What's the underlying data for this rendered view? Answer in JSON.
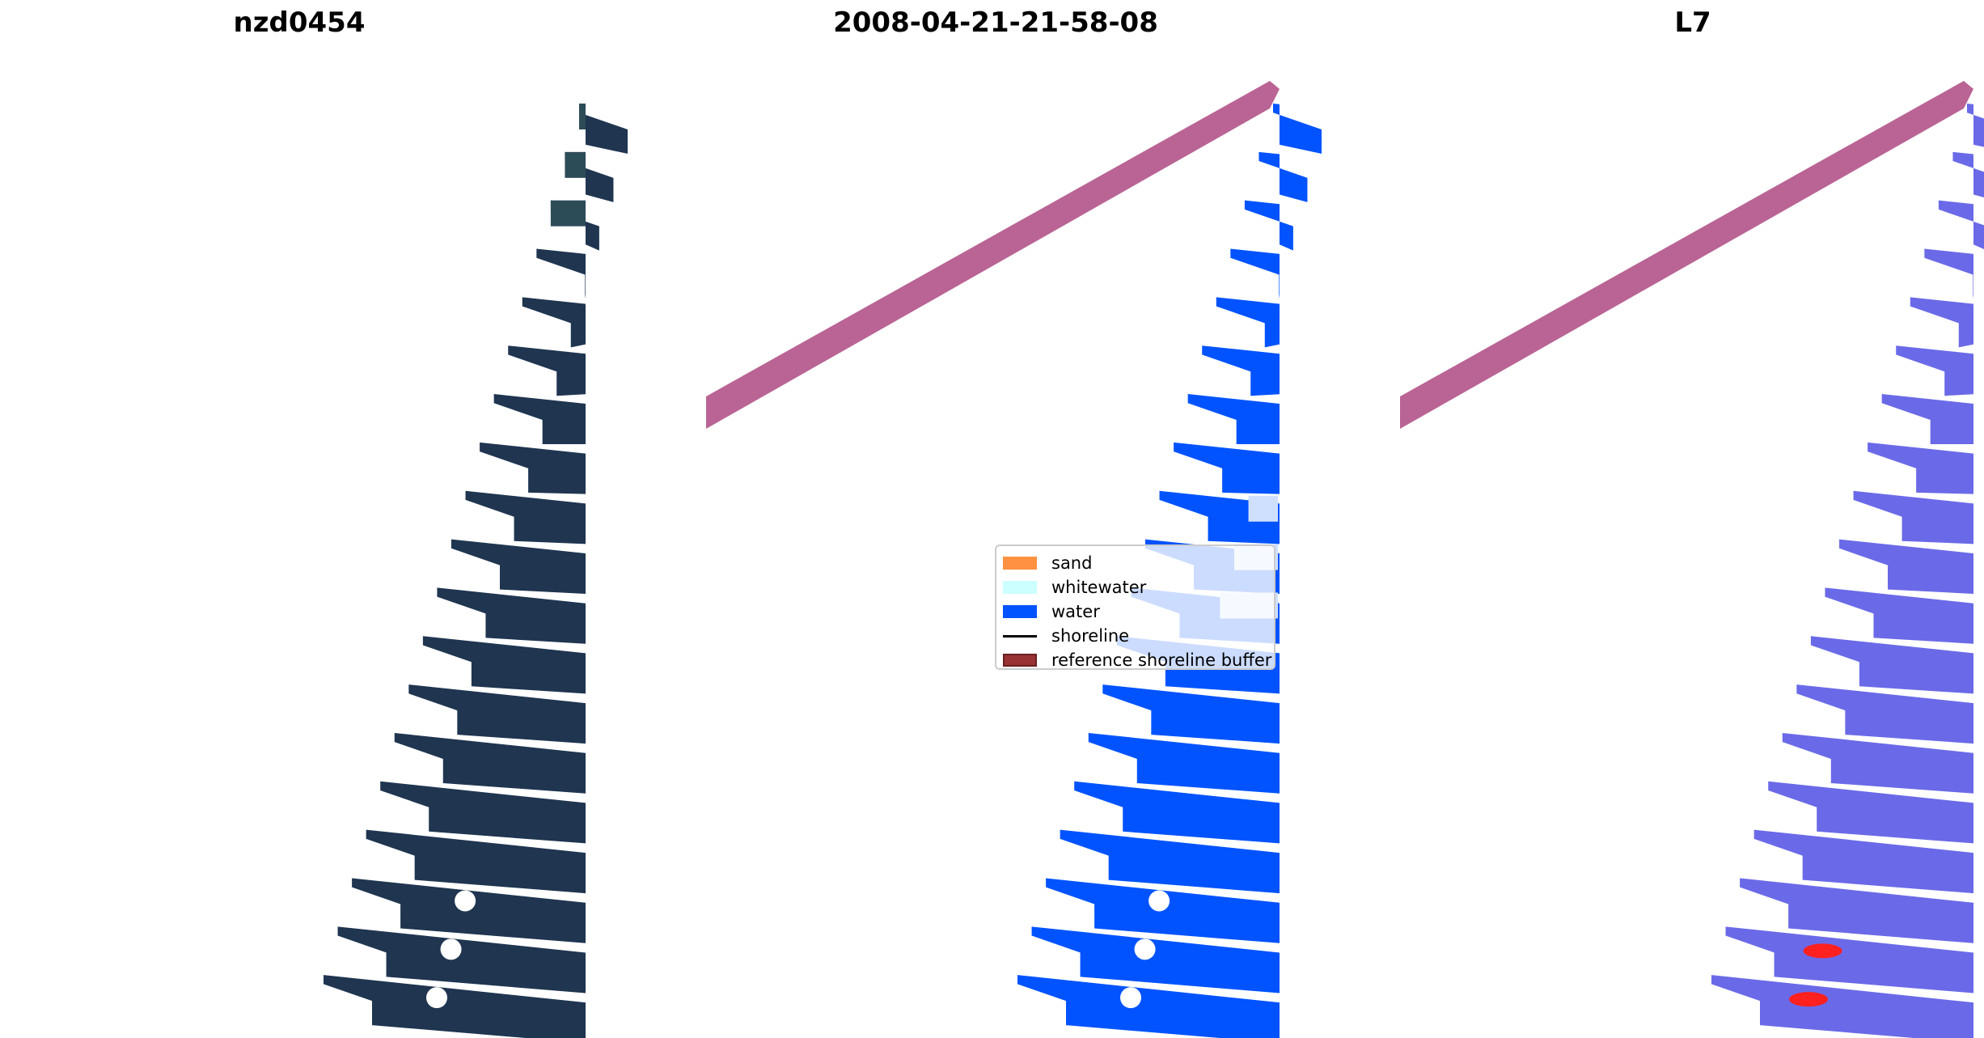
{
  "titles": {
    "left": "nzd0454",
    "middle": "2008-04-21-21-58-08",
    "right": "L7"
  },
  "legend": {
    "items": [
      {
        "label": "sand",
        "kind": "patch",
        "color": "#ff9140",
        "edge": "#ff9140"
      },
      {
        "label": "whitewater",
        "kind": "patch",
        "color": "#ccffff",
        "edge": "#ccffff"
      },
      {
        "label": "water",
        "kind": "patch",
        "color": "#0053ff",
        "edge": "#0053ff"
      },
      {
        "label": "shoreline",
        "kind": "line",
        "color": "#000000",
        "edge": "#000000"
      },
      {
        "label": "reference shoreline buffer",
        "kind": "patch",
        "color": "#993333",
        "edge": "#6b1f1f"
      }
    ]
  },
  "colors": {
    "rgb_water": "#1f3550",
    "rgb_shallow": "#2c4c58",
    "classified_water": "#0053ff",
    "buffer": "#b96494",
    "index_water": "#6a6ae8",
    "index_positive": "#ff2020"
  }
}
